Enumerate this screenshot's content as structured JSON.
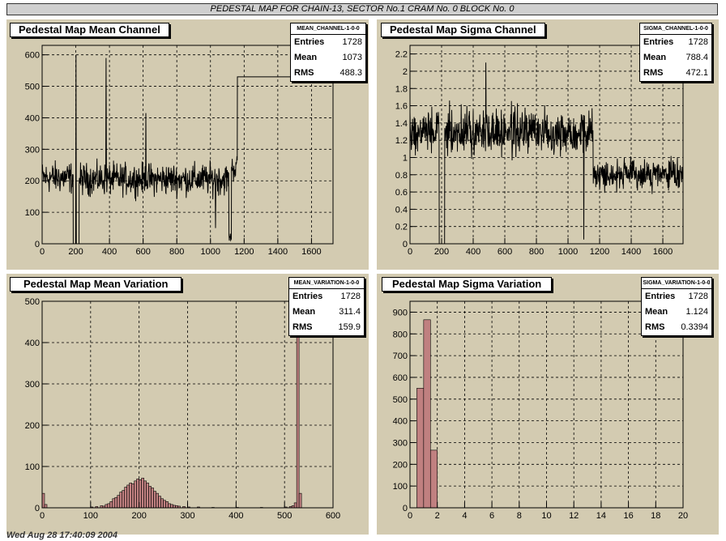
{
  "page_title": "PEDESTAL MAP FOR CHAIN-13, SECTOR No.1 CRAM No. 0 BLOCK No. 0",
  "footer_text": "Wed Aug 28 17:40:09 2004",
  "colors": {
    "pad_background": "#d3cbb1",
    "histogram_fill": "#c08080",
    "line": "#000000"
  },
  "pads": [
    {
      "title": "Pedestal Map Mean Channel",
      "stats": {
        "name": "MEAN_CHANNEL-1-0-0",
        "rows": [
          {
            "label": "Entries",
            "value": "1728"
          },
          {
            "label": "Mean",
            "value": "1073"
          },
          {
            "label": "RMS",
            "value": "488.3"
          }
        ]
      }
    },
    {
      "title": "Pedestal Map Sigma Channel",
      "stats": {
        "name": "SIGMA_CHANNEL-1-0-0",
        "rows": [
          {
            "label": "Entries",
            "value": "1728"
          },
          {
            "label": "Mean",
            "value": "788.4"
          },
          {
            "label": "RMS",
            "value": "472.1"
          }
        ]
      }
    },
    {
      "title": "Pedestal Map Mean Variation",
      "stats": {
        "name": "MEAN_VARIATION-1-0-0",
        "rows": [
          {
            "label": "Entries",
            "value": "1728"
          },
          {
            "label": "Mean",
            "value": "311.4"
          },
          {
            "label": "RMS",
            "value": "159.9"
          }
        ]
      }
    },
    {
      "title": "Pedestal Map Sigma Variation",
      "stats": {
        "name": "SIGMA_VARIATION-1-0-0",
        "rows": [
          {
            "label": "Entries",
            "value": "1728"
          },
          {
            "label": "Mean",
            "value": "1.124"
          },
          {
            "label": "RMS",
            "value": "0.3394"
          }
        ]
      }
    }
  ],
  "chart_data": [
    {
      "type": "line",
      "title": "Pedestal Map Mean Channel",
      "xlim": [
        0,
        1728
      ],
      "ylim": [
        0,
        630
      ],
      "x_ticks": [
        0,
        200,
        400,
        600,
        800,
        1000,
        1200,
        1400,
        1600
      ],
      "y_ticks": [
        0,
        100,
        200,
        300,
        400,
        500,
        600
      ],
      "grid": true,
      "segments": [
        {
          "x_from": 0,
          "x_to": 185,
          "mean": 210,
          "noise": 35
        },
        {
          "x_from": 185,
          "x_to": 220,
          "mean": 0,
          "noise": 0
        },
        {
          "x_from": 220,
          "x_to": 1110,
          "mean": 205,
          "noise": 35
        },
        {
          "x_from": 1110,
          "x_to": 1125,
          "mean": 20,
          "noise": 10
        },
        {
          "x_from": 1125,
          "x_to": 1160,
          "mean": 240,
          "noise": 30
        },
        {
          "x_from": 1160,
          "x_to": 1728,
          "mean": 530,
          "noise": 0
        }
      ],
      "spikes": [
        {
          "x": 200,
          "y": 600
        },
        {
          "x": 380,
          "y": 590
        },
        {
          "x": 615,
          "y": 415
        },
        {
          "x": 1030,
          "y": 50
        }
      ]
    },
    {
      "type": "line",
      "title": "Pedestal Map Sigma Channel",
      "xlim": [
        0,
        1728
      ],
      "ylim": [
        0,
        2.3
      ],
      "x_ticks": [
        0,
        200,
        400,
        600,
        800,
        1000,
        1200,
        1400,
        1600
      ],
      "y_ticks": [
        0,
        0.2,
        0.4,
        0.6,
        0.8,
        1,
        1.2,
        1.4,
        1.6,
        1.8,
        2,
        2.2
      ],
      "grid": true,
      "segments": [
        {
          "x_from": 0,
          "x_to": 185,
          "mean": 1.3,
          "noise": 0.18
        },
        {
          "x_from": 185,
          "x_to": 220,
          "mean": 0,
          "noise": 0
        },
        {
          "x_from": 220,
          "x_to": 1160,
          "mean": 1.3,
          "noise": 0.18
        },
        {
          "x_from": 1160,
          "x_to": 1728,
          "mean": 0.8,
          "noise": 0.12
        }
      ],
      "spikes": [
        {
          "x": 480,
          "y": 2.1
        },
        {
          "x": 1100,
          "y": 0.05
        }
      ]
    },
    {
      "type": "bar",
      "title": "Pedestal Map Mean Variation",
      "xlim": [
        0,
        600
      ],
      "ylim": [
        0,
        500
      ],
      "x_ticks": [
        0,
        100,
        200,
        300,
        400,
        500,
        600
      ],
      "y_ticks": [
        0,
        100,
        200,
        300,
        400,
        500
      ],
      "grid": true,
      "bin_width": 5,
      "bins": [
        {
          "x": 0,
          "y": 35
        },
        {
          "x": 5,
          "y": 8
        },
        {
          "x": 100,
          "y": 2
        },
        {
          "x": 110,
          "y": 3
        },
        {
          "x": 120,
          "y": 5
        },
        {
          "x": 125,
          "y": 4
        },
        {
          "x": 130,
          "y": 8
        },
        {
          "x": 135,
          "y": 10
        },
        {
          "x": 140,
          "y": 15
        },
        {
          "x": 145,
          "y": 22
        },
        {
          "x": 150,
          "y": 25
        },
        {
          "x": 155,
          "y": 30
        },
        {
          "x": 160,
          "y": 38
        },
        {
          "x": 165,
          "y": 42
        },
        {
          "x": 170,
          "y": 50
        },
        {
          "x": 175,
          "y": 55
        },
        {
          "x": 180,
          "y": 60
        },
        {
          "x": 185,
          "y": 58
        },
        {
          "x": 190,
          "y": 65
        },
        {
          "x": 195,
          "y": 70
        },
        {
          "x": 200,
          "y": 68
        },
        {
          "x": 205,
          "y": 72
        },
        {
          "x": 210,
          "y": 65
        },
        {
          "x": 215,
          "y": 60
        },
        {
          "x": 220,
          "y": 52
        },
        {
          "x": 225,
          "y": 48
        },
        {
          "x": 230,
          "y": 40
        },
        {
          "x": 235,
          "y": 35
        },
        {
          "x": 240,
          "y": 28
        },
        {
          "x": 245,
          "y": 22
        },
        {
          "x": 250,
          "y": 18
        },
        {
          "x": 255,
          "y": 15
        },
        {
          "x": 260,
          "y": 10
        },
        {
          "x": 265,
          "y": 8
        },
        {
          "x": 270,
          "y": 6
        },
        {
          "x": 275,
          "y": 5
        },
        {
          "x": 280,
          "y": 4
        },
        {
          "x": 290,
          "y": 3
        },
        {
          "x": 300,
          "y": 2
        },
        {
          "x": 320,
          "y": 2
        },
        {
          "x": 350,
          "y": 1
        },
        {
          "x": 400,
          "y": 1
        },
        {
          "x": 450,
          "y": 1
        },
        {
          "x": 500,
          "y": 2
        },
        {
          "x": 510,
          "y": 3
        },
        {
          "x": 515,
          "y": 5
        },
        {
          "x": 520,
          "y": 12
        },
        {
          "x": 525,
          "y": 440
        },
        {
          "x": 530,
          "y": 35
        }
      ]
    },
    {
      "type": "bar",
      "title": "Pedestal Map Sigma Variation",
      "xlim": [
        0,
        20
      ],
      "ylim": [
        0,
        950
      ],
      "x_ticks": [
        0,
        2,
        4,
        6,
        8,
        10,
        12,
        14,
        16,
        18,
        20
      ],
      "y_ticks": [
        0,
        100,
        200,
        300,
        400,
        500,
        600,
        700,
        800,
        900
      ],
      "grid": true,
      "bin_width": 0.5,
      "bins": [
        {
          "x": 0.5,
          "y": 550
        },
        {
          "x": 1.0,
          "y": 865
        },
        {
          "x": 1.5,
          "y": 265
        }
      ]
    }
  ]
}
